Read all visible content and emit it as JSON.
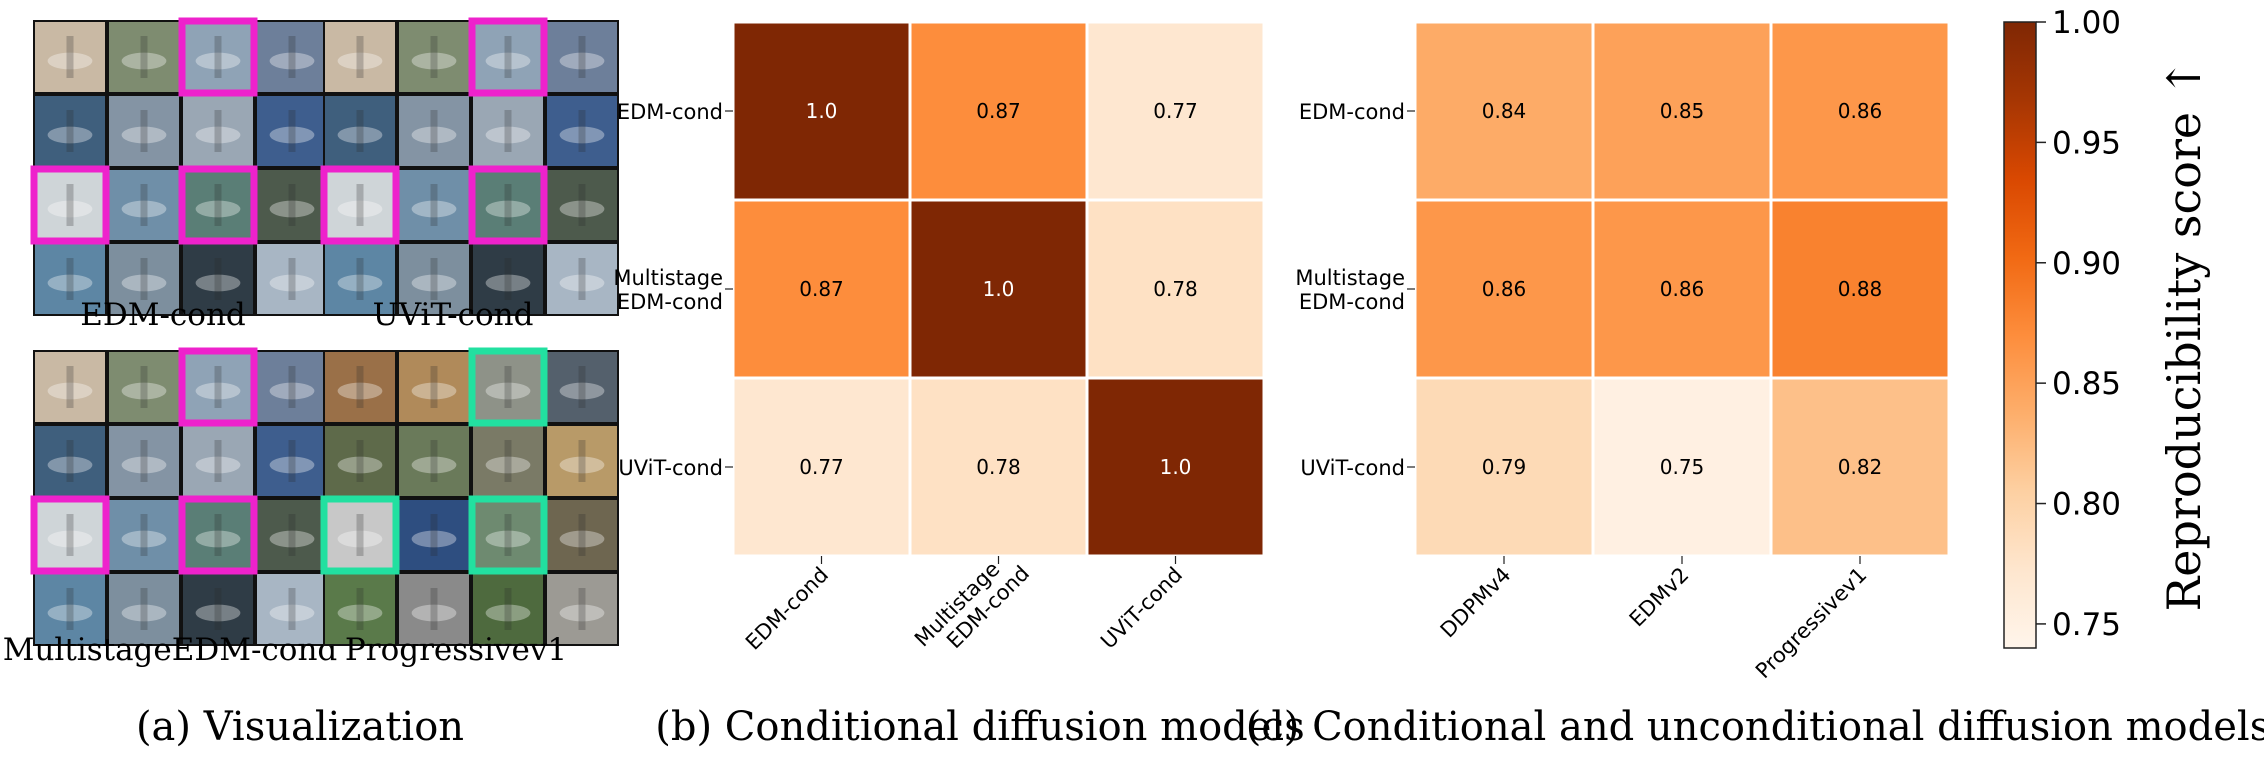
{
  "panels": {
    "a": {
      "caption": "(a) Visualization",
      "grids": [
        {
          "label": "EDM-cond",
          "highlight_color": "#ee22cc"
        },
        {
          "label": "UViT-cond",
          "highlight_color": "#ee22cc"
        },
        {
          "label": "MultistageEDM-cond",
          "highlight_color": "#ee22cc"
        },
        {
          "label": "Progressivev1",
          "highlight_color": "#22e0a0"
        }
      ],
      "highlighted_cells": [
        [
          0,
          2
        ],
        [
          2,
          0
        ],
        [
          2,
          2
        ]
      ],
      "tile_colors": [
        [
          "#c9b9a4",
          "#7e8c70",
          "#8fa3b6",
          "#6d7f9a"
        ],
        [
          "#3f5f7d",
          "#8494a4",
          "#9aa7b4",
          "#3e5e8e"
        ],
        [
          "#cfd5d8",
          "#6f8fa8",
          "#5a7e76",
          "#4d5a4c"
        ],
        [
          "#5d86a4",
          "#7d8f9e",
          "#2f3c46",
          "#a8b6c4"
        ]
      ],
      "progressive_tile_colors": [
        [
          "#9a7048",
          "#b08a5a",
          "#8e9288",
          "#54606c"
        ],
        [
          "#5e6a4a",
          "#6a7a5a",
          "#7a7a66",
          "#b89a68"
        ],
        [
          "#c8c8c8",
          "#2e4e80",
          "#6e8a70",
          "#6e6650"
        ],
        [
          "#5a7a4a",
          "#8a8a8a",
          "#4e6a3e",
          "#9c9a94"
        ]
      ]
    },
    "b": {
      "caption": "(b) Conditional diffusion models"
    },
    "c": {
      "caption": "(c) Conditional and unconditional diffusion models"
    }
  },
  "chart_data": [
    {
      "type": "heatmap",
      "rows": [
        "EDM-cond",
        "Multistage EDM-cond",
        "UViT-cond"
      ],
      "cols": [
        "EDM-cond",
        "Multistage EDM-cond",
        "UViT-cond"
      ],
      "values": [
        [
          1.0,
          0.87,
          0.77
        ],
        [
          0.87,
          1.0,
          0.78
        ],
        [
          0.77,
          0.78,
          1.0
        ]
      ],
      "labels": [
        [
          "1.0",
          "0.87",
          "0.77"
        ],
        [
          "0.87",
          "1.0",
          "0.78"
        ],
        [
          "0.77",
          "0.78",
          "1.0"
        ]
      ]
    },
    {
      "type": "heatmap",
      "rows": [
        "EDM-cond",
        "Multistage EDM-cond",
        "UViT-cond"
      ],
      "cols": [
        "DDPMv4",
        "EDMv2",
        "Progressivev1"
      ],
      "values": [
        [
          0.84,
          0.85,
          0.86
        ],
        [
          0.86,
          0.86,
          0.88
        ],
        [
          0.79,
          0.75,
          0.82
        ]
      ],
      "labels": [
        [
          "0.84",
          "0.85",
          "0.86"
        ],
        [
          "0.86",
          "0.86",
          "0.88"
        ],
        [
          "0.79",
          "0.75",
          "0.82"
        ]
      ]
    }
  ],
  "colorbar": {
    "label": "Reproducibility score ↑",
    "range": [
      0.74,
      1.0
    ],
    "ticks": [
      "1.00",
      "0.95",
      "0.90",
      "0.85",
      "0.80",
      "0.75"
    ],
    "tick_values": [
      1.0,
      0.95,
      0.9,
      0.85,
      0.8,
      0.75
    ],
    "colormap": [
      "#fff5eb",
      "#fee6ce",
      "#fdd0a2",
      "#fdae6b",
      "#fd8d3c",
      "#f16913",
      "#d94801",
      "#a63603",
      "#7f2704"
    ]
  }
}
